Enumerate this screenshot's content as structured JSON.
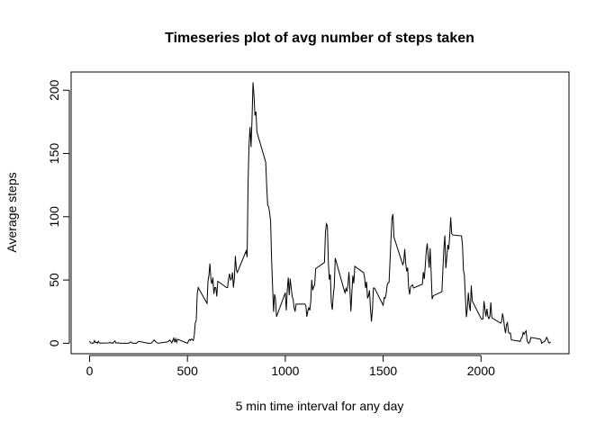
{
  "chart_data": {
    "type": "line",
    "title": "Timeseries plot of avg number of steps taken",
    "x_label": "5 min time interval for any day",
    "y_label": "Average steps",
    "color": "#000000",
    "xlim": [
      -94.2,
      2449.2
    ],
    "xticks": [
      0,
      500,
      1000,
      1500,
      2000
    ],
    "ylim": [
      -8.25,
      214.4
    ],
    "yticks": [
      0,
      50,
      100,
      150,
      200
    ],
    "x": [
      0,
      5,
      10,
      15,
      20,
      25,
      30,
      35,
      40,
      45,
      50,
      55,
      100,
      105,
      110,
      115,
      120,
      125,
      130,
      135,
      140,
      145,
      150,
      155,
      200,
      210,
      220,
      230,
      240,
      250,
      300,
      315,
      330,
      340,
      350,
      400,
      410,
      420,
      430,
      435,
      440,
      445,
      450,
      500,
      505,
      510,
      515,
      520,
      525,
      530,
      535,
      540,
      545,
      550,
      555,
      600,
      605,
      610,
      615,
      620,
      625,
      630,
      635,
      640,
      645,
      650,
      655,
      700,
      705,
      710,
      715,
      720,
      725,
      730,
      735,
      740,
      745,
      750,
      755,
      800,
      805,
      810,
      815,
      820,
      825,
      830,
      835,
      840,
      845,
      850,
      855,
      900,
      905,
      910,
      915,
      920,
      925,
      930,
      935,
      940,
      945,
      950,
      955,
      1000,
      1005,
      1010,
      1015,
      1020,
      1025,
      1030,
      1035,
      1040,
      1045,
      1050,
      1055,
      1100,
      1105,
      1110,
      1115,
      1120,
      1125,
      1130,
      1135,
      1140,
      1145,
      1150,
      1155,
      1200,
      1205,
      1210,
      1215,
      1220,
      1225,
      1230,
      1235,
      1240,
      1245,
      1250,
      1255,
      1300,
      1305,
      1310,
      1315,
      1320,
      1325,
      1330,
      1335,
      1340,
      1345,
      1350,
      1355,
      1400,
      1405,
      1410,
      1415,
      1420,
      1425,
      1430,
      1435,
      1440,
      1445,
      1450,
      1455,
      1500,
      1505,
      1510,
      1515,
      1520,
      1525,
      1530,
      1535,
      1540,
      1545,
      1550,
      1555,
      1600,
      1605,
      1610,
      1615,
      1620,
      1625,
      1630,
      1635,
      1640,
      1645,
      1650,
      1655,
      1700,
      1705,
      1710,
      1715,
      1720,
      1725,
      1730,
      1735,
      1740,
      1745,
      1750,
      1755,
      1800,
      1805,
      1810,
      1815,
      1820,
      1825,
      1830,
      1835,
      1840,
      1845,
      1850,
      1855,
      1900,
      1905,
      1910,
      1915,
      1920,
      1925,
      1930,
      1935,
      1940,
      1945,
      1950,
      1955,
      2000,
      2005,
      2010,
      2015,
      2020,
      2025,
      2030,
      2035,
      2040,
      2045,
      2050,
      2055,
      2100,
      2105,
      2110,
      2115,
      2120,
      2125,
      2130,
      2135,
      2140,
      2145,
      2150,
      2155,
      2200,
      2205,
      2210,
      2215,
      2220,
      2225,
      2230,
      2235,
      2240,
      2245,
      2250,
      2255,
      2300,
      2305,
      2310,
      2315,
      2320,
      2325,
      2330,
      2335,
      2340,
      2345,
      2350,
      2355
    ],
    "values": [
      1.7,
      0.3,
      0.1,
      0.2,
      0.1,
      2.1,
      0.5,
      0.9,
      0,
      1.5,
      0.3,
      0.1,
      0.3,
      0.7,
      0.2,
      0.3,
      0,
      1.1,
      1.8,
      0.2,
      0.2,
      0.4,
      0.3,
      0,
      0,
      1.1,
      0,
      0,
      0,
      1.5,
      0,
      0,
      2.6,
      0.9,
      0,
      1.2,
      2.6,
      0.3,
      4.1,
      0.7,
      3.5,
      0.8,
      3.1,
      0,
      1.6,
      3,
      2.2,
      3.3,
      3,
      2.1,
      6.1,
      16,
      18,
      39,
      44,
      31.5,
      49,
      54,
      63,
      50,
      47,
      52,
      39,
      44,
      44,
      37,
      49,
      44,
      44,
      51,
      55,
      50,
      51,
      56,
      44,
      52,
      69,
      58,
      56,
      73,
      68,
      129,
      158,
      171,
      155,
      177,
      206.2,
      196,
      180,
      183,
      167,
      143,
      124,
      109,
      108,
      103,
      96,
      66,
      45,
      24.8,
      38.8,
      35,
      21,
      40,
      26,
      42,
      52,
      38,
      51,
      44,
      37,
      34.7,
      28,
      25,
      31,
      31,
      29.7,
      21,
      25.5,
      28,
      26,
      33,
      50,
      42,
      44.6,
      46,
      59,
      63.9,
      87.6,
      94.4,
      92.8,
      63.4,
      50.2,
      54.5,
      32.4,
      26.5,
      37.7,
      45,
      67.3,
      42.3,
      39.9,
      43.3,
      40.98,
      46.2,
      56.4,
      42.8,
      25.1,
      39.9,
      53.5,
      47.3,
      60.8,
      55.8,
      51.96,
      43.6,
      48.7,
      35.5,
      37.5,
      41.8,
      27.5,
      17.1,
      26.1,
      43.6,
      43.8,
      30,
      36.1,
      35.5,
      38.8,
      45.96,
      47.75,
      48.1,
      65.3,
      82.9,
      98.7,
      102.1,
      83.96,
      62.1,
      64.1,
      74.5,
      63.2,
      56.9,
      59.8,
      43.9,
      38.6,
      44.7,
      45.5,
      46.2,
      43.7,
      46.6,
      56.3,
      50.7,
      61.2,
      72.7,
      78.9,
      68.9,
      59.7,
      75.1,
      56.5,
      34.8,
      37.5,
      40.7,
      58,
      74.7,
      85.3,
      59.3,
      67.8,
      77.7,
      74.2,
      85.3,
      99.5,
      86.6,
      85.6,
      84.9,
      77.8,
      58,
      53.4,
      36.3,
      20.7,
      27.4,
      40,
      30.2,
      25.5,
      45.7,
      33.5,
      19.6,
      19,
      19.3,
      33.3,
      26.8,
      21.2,
      27.3,
      21.3,
      19.5,
      21.3,
      32.3,
      20.2,
      15.9,
      17.2,
      23.5,
      19.2,
      12.5,
      8,
      14.7,
      16.3,
      8.7,
      7.8,
      8.1,
      2.6,
      1.5,
      3.7,
      4.8,
      8.5,
      7.1,
      8.7,
      9.8,
      2.2,
      0.3,
      0.1,
      1.6,
      4.6,
      3.3,
      2.8,
      0,
      0.8,
      1,
      1.6,
      2.6,
      4.7,
      3.3,
      0.6,
      0.2,
      1.1
    ]
  }
}
